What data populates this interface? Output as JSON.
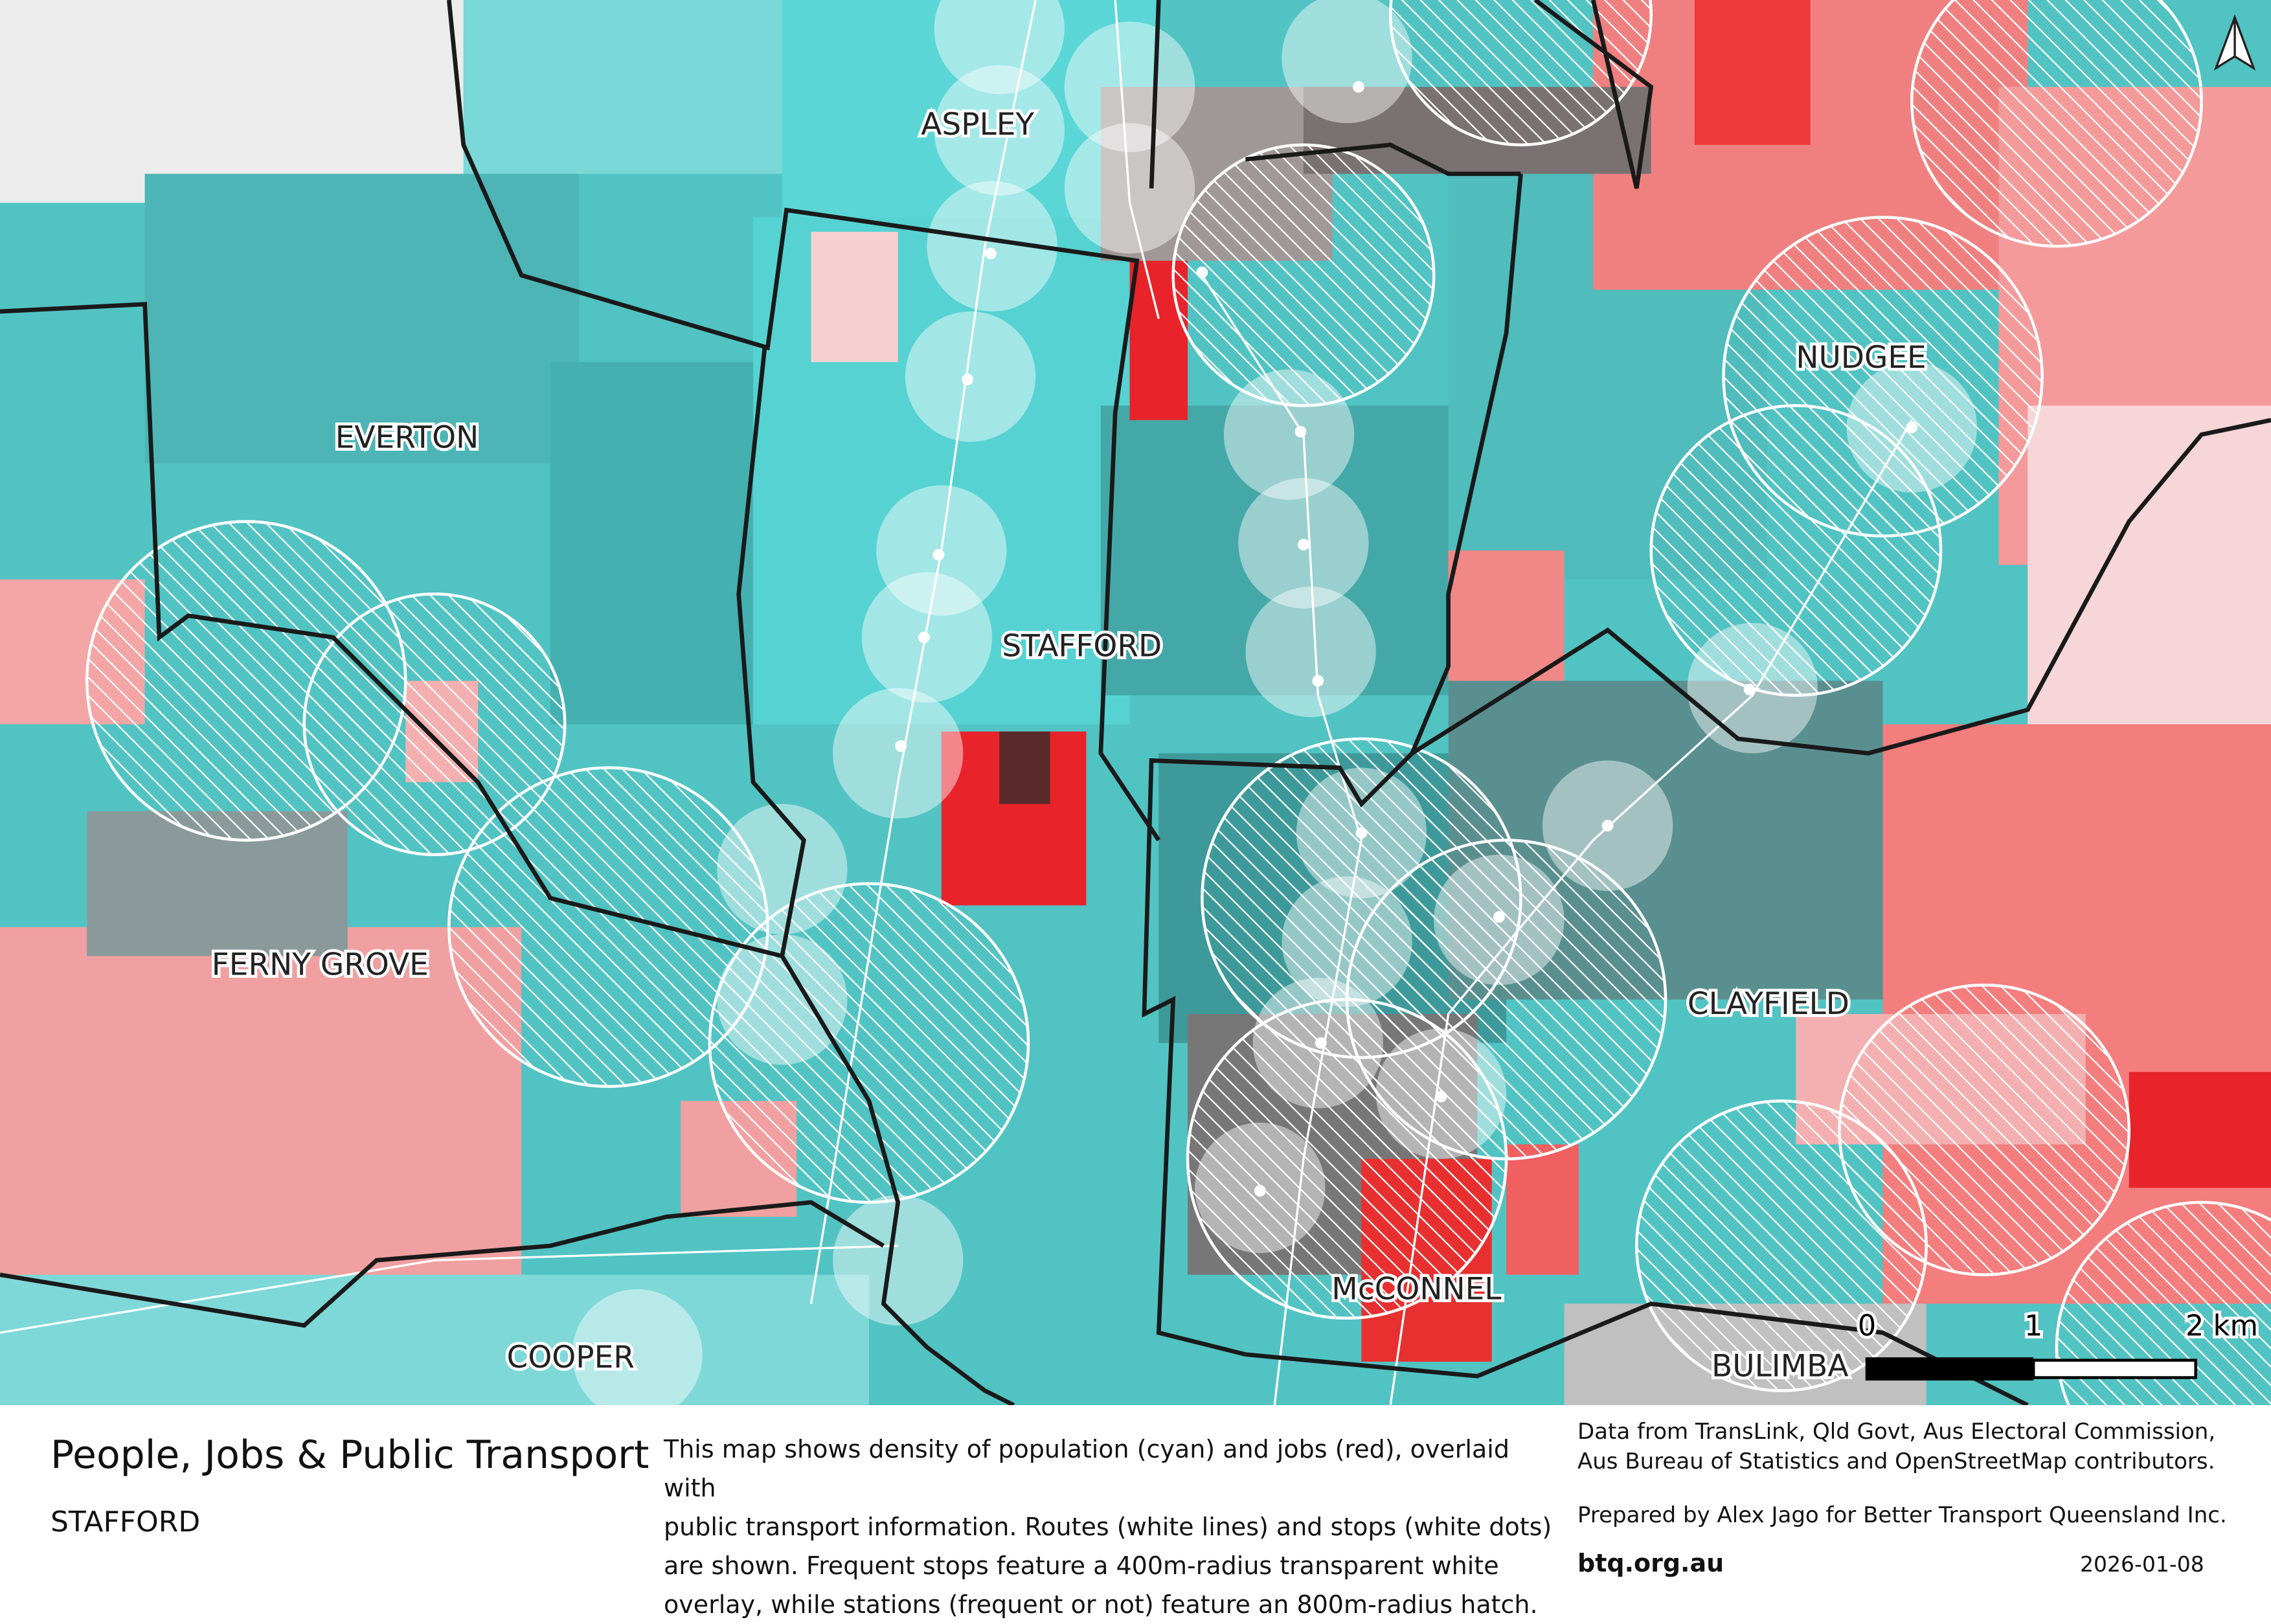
{
  "map": {
    "suburb_labels": [
      "ASPLEY",
      "EVERTON",
      "STAFFORD",
      "FERNY GROVE",
      "COOPER",
      "NUDGEE",
      "CLAYFIELD",
      "McCONNEL",
      "BULIMBA"
    ],
    "scale_bar": {
      "ticks": [
        "0",
        "1",
        "2 km"
      ]
    },
    "north_arrow_icon": "north-arrow-icon",
    "colors": {
      "population": "#3fc4c4",
      "jobs": "#f06a6a",
      "high_jobs": "#e8232a",
      "mixed": "#8a8a8a",
      "boundary": "#1a1a1a"
    }
  },
  "footer": {
    "title": "People, Jobs & Public Transport",
    "subtitle": "STAFFORD",
    "description": [
      "This map shows density of population (cyan) and jobs (red), overlaid with",
      "public transport information. Routes (white lines) and stops (white dots)",
      "are shown. Frequent stops feature a 400m-radius transparent white",
      "overlay, while stations (frequent or not) feature an 800m-radius hatch."
    ],
    "credits": [
      "Data from TransLink,  Qld Govt,  Aus Electoral Commission,",
      "Aus Bureau of Statistics and OpenStreetMap contributors."
    ],
    "prepared_by": "Prepared by Alex Jago for Better Transport Queensland Inc.",
    "website": "btq.org.au",
    "date": "2026-01-08"
  }
}
